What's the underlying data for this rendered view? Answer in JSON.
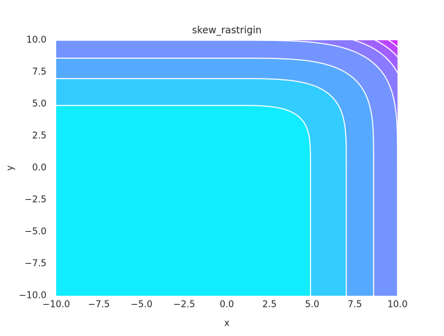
{
  "chart_data": {
    "type": "contour",
    "title": "skew_rastrigin",
    "x_label": "x",
    "y_label": "y",
    "xlim": [
      -10,
      10
    ],
    "ylim": [
      -10,
      10
    ],
    "xticks": [
      {
        "value": -10,
        "label": "−10.0"
      },
      {
        "value": -7.5,
        "label": "−7.5"
      },
      {
        "value": -5,
        "label": "−5.0"
      },
      {
        "value": -2.5,
        "label": "−2.5"
      },
      {
        "value": 0,
        "label": "0.0"
      },
      2.5,
      {
        "value": 5,
        "label": "5.0"
      },
      7.5,
      {
        "value": 10,
        "label": "10.0"
      }
    ],
    "yticks": [
      {
        "value": -10,
        "label": "−10.0"
      },
      {
        "value": -7.5,
        "label": "−7.5"
      },
      {
        "value": -5,
        "label": "−5.0"
      },
      {
        "value": -2.5,
        "label": "−2.5"
      },
      {
        "value": 0,
        "label": "0.0"
      },
      2.5,
      {
        "value": 5,
        "label": "5.0"
      },
      7.5,
      {
        "value": 10,
        "label": "10.0"
      }
    ],
    "levels": [
      4.9,
      7.0,
      8.6,
      10.0,
      10.7,
      11.2,
      11.6,
      12.0
    ],
    "colors": [
      "#12ecff",
      "#33ccff",
      "#55aaff",
      "#7494ff",
      "#8a7aff",
      "#a060ff",
      "#bb45ff",
      "#d52bff",
      "#ee12ff"
    ],
    "line_color": "#ffffff",
    "grid": false
  }
}
